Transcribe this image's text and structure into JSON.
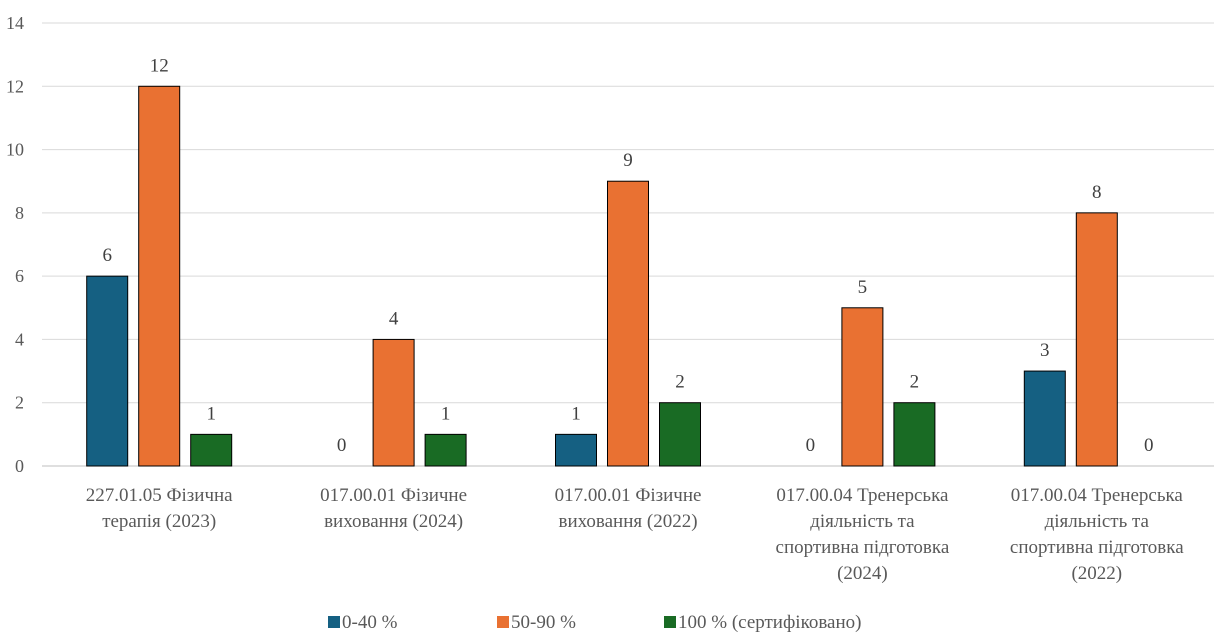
{
  "chart_data": {
    "type": "bar",
    "categories": [
      [
        "227.01.05 Фізична",
        "терапія (2023)"
      ],
      [
        "017.00.01 Фізичне",
        "виховання (2024)"
      ],
      [
        "017.00.01 Фізичне",
        "виховання (2022)"
      ],
      [
        "017.00.04 Тренерська",
        "діяльність та",
        "спортивна підготовка",
        "(2024)"
      ],
      [
        "017.00.04 Тренерська",
        "діяльність та",
        "спортивна підготовка",
        "(2022)"
      ]
    ],
    "series": [
      {
        "name": "0-40 %",
        "color": "#156082",
        "values": [
          6,
          0,
          1,
          0,
          3
        ]
      },
      {
        "name": "50-90 %",
        "color": "#e97132",
        "values": [
          12,
          4,
          9,
          5,
          8
        ]
      },
      {
        "name": "100 % (сертифіковано)",
        "color": "#196b24",
        "values": [
          1,
          1,
          2,
          2,
          0
        ]
      }
    ],
    "ylim": [
      0,
      14
    ],
    "yticks": [
      0,
      2,
      4,
      6,
      8,
      10,
      12,
      14
    ],
    "grid": true,
    "legend": "bottom"
  }
}
